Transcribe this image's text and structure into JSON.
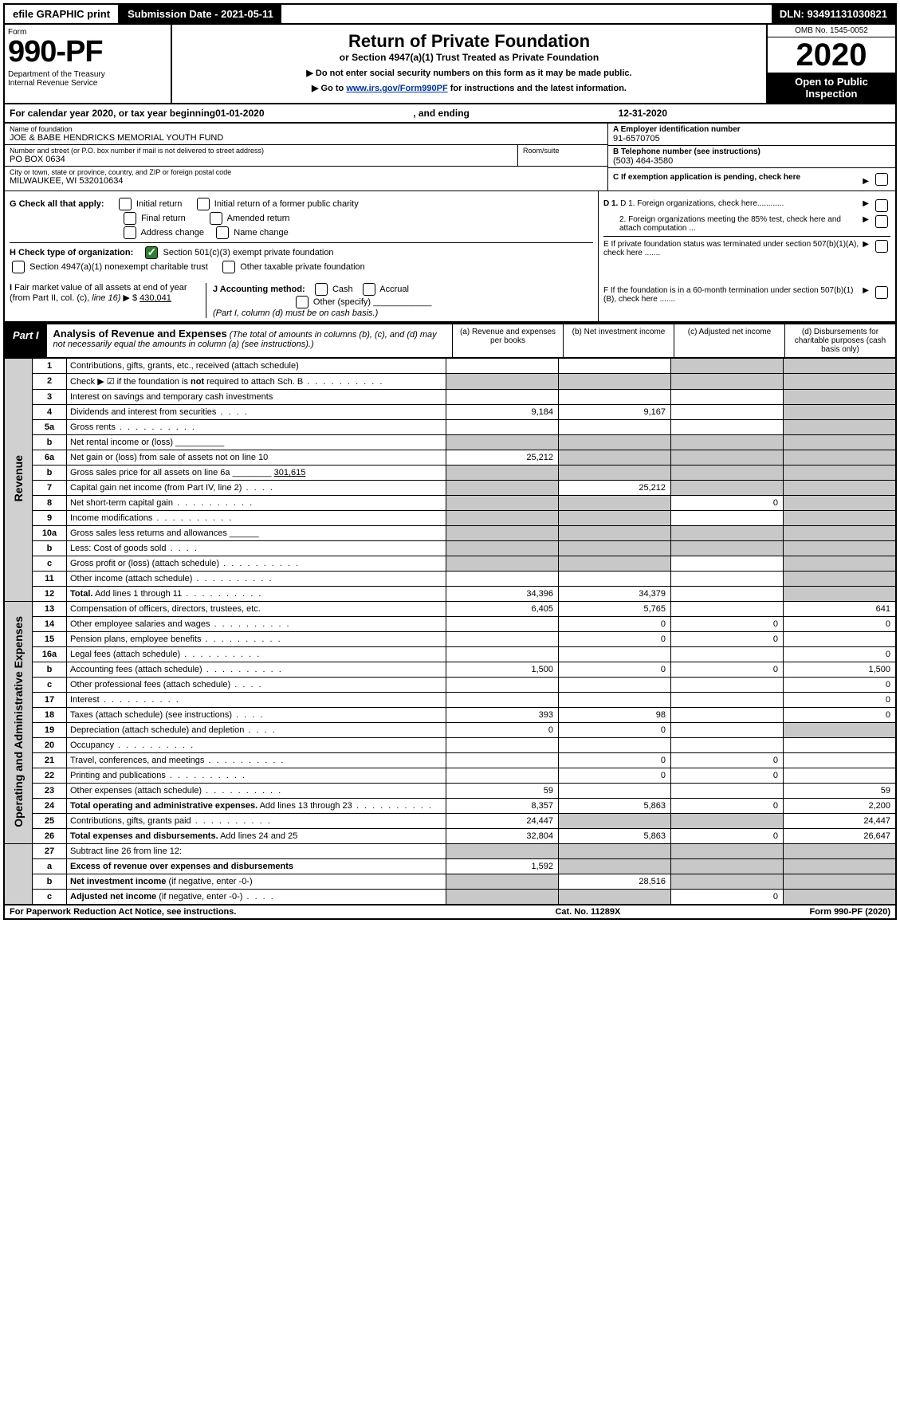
{
  "colors": {
    "black": "#000000",
    "white": "#ffffff",
    "shade_grey": "#c8c8c8",
    "side_grey": "#d0d0d0",
    "check_green": "#2e7d32",
    "link_blue": "#003399"
  },
  "top_bar": {
    "efile": "efile GRAPHIC print",
    "submission": "Submission Date - 2021-05-11",
    "dln": "DLN: 93491131030821"
  },
  "header": {
    "form_word": "Form",
    "form_number": "990-PF",
    "dept": "Department of the Treasury\nInternal Revenue Service",
    "title": "Return of Private Foundation",
    "subtitle": "or Section 4947(a)(1) Trust Treated as Private Foundation",
    "note1": "▶ Do not enter social security numbers on this form as it may be made public.",
    "note2_prefix": "▶ Go to ",
    "note2_link": "www.irs.gov/Form990PF",
    "note2_suffix": " for instructions and the latest information.",
    "omb": "OMB No. 1545-0052",
    "year": "2020",
    "open": "Open to Public Inspection"
  },
  "cal_year": {
    "prefix": "For calendar year 2020, or tax year beginning ",
    "begin": "01-01-2020",
    "mid": ", and ending ",
    "end": "12-31-2020"
  },
  "ident": {
    "name_lbl": "Name of foundation",
    "name": "JOE & BABE HENDRICKS MEMORIAL YOUTH FUND",
    "ein_lbl": "A Employer identification number",
    "ein": "91-6570705",
    "addr_lbl": "Number and street (or P.O. box number if mail is not delivered to street address)",
    "addr": "PO BOX 0634",
    "room_lbl": "Room/suite",
    "room": "",
    "tel_lbl": "B Telephone number (see instructions)",
    "tel": "(503) 464-3580",
    "city_lbl": "City or town, state or province, country, and ZIP or foreign postal code",
    "city": "MILWAUKEE, WI  532010634",
    "c_lbl": "C If exemption application is pending, check here"
  },
  "g_block": {
    "label": "G Check all that apply:",
    "opts": [
      "Initial return",
      "Initial return of a former public charity",
      "Final return",
      "Amended return",
      "Address change",
      "Name change"
    ]
  },
  "h_block": {
    "label": "H Check type of organization:",
    "opt1": "Section 501(c)(3) exempt private foundation",
    "opt2": "Section 4947(a)(1) nonexempt charitable trust",
    "opt3": "Other taxable private foundation"
  },
  "d_block": {
    "d1": "D 1. Foreign organizations, check here............",
    "d2": "2. Foreign organizations meeting the 85% test, check here and attach computation ...",
    "e": "E  If private foundation status was terminated under section 507(b)(1)(A), check here .......",
    "f": "F  If the foundation is in a 60-month termination under section 507(b)(1)(B), check here ......."
  },
  "ij_block": {
    "i_lbl": "I Fair market value of all assets at end of year (from Part II, col. (c), line 16)",
    "i_val": "430,041",
    "j_lbl": "J Accounting method:",
    "j_cash": "Cash",
    "j_accrual": "Accrual",
    "j_other": "Other (specify)",
    "j_note": "(Part I, column (d) must be on cash basis.)"
  },
  "part1": {
    "label": "Part I",
    "title": "Analysis of Revenue and Expenses",
    "title_note": "(The total of amounts in columns (b), (c), and (d) may not necessarily equal the amounts in column (a) (see instructions).)",
    "col_a": "(a)   Revenue and expenses per books",
    "col_b": "(b)  Net investment income",
    "col_c": "(c)  Adjusted net income",
    "col_d": "(d)  Disbursements for charitable purposes (cash basis only)"
  },
  "side_labels": {
    "revenue": "Revenue",
    "expenses": "Operating and Administrative Expenses"
  },
  "rows": [
    {
      "n": "1",
      "desc": "Contributions, gifts, grants, etc., received (attach schedule)",
      "a": "",
      "b": "",
      "c": "shade",
      "d": "shade"
    },
    {
      "n": "2",
      "desc": "Check ▶ ☑ if the foundation is <b>not</b> required to attach Sch. B",
      "a": "shade",
      "b": "shade",
      "c": "shade",
      "d": "shade",
      "dots": true
    },
    {
      "n": "3",
      "desc": "Interest on savings and temporary cash investments",
      "a": "",
      "b": "",
      "c": "",
      "d": "shade"
    },
    {
      "n": "4",
      "desc": "Dividends and interest from securities",
      "a": "9,184",
      "b": "9,167",
      "c": "",
      "d": "shade",
      "dots_sm": true
    },
    {
      "n": "5a",
      "desc": "Gross rents",
      "a": "",
      "b": "",
      "c": "",
      "d": "shade",
      "dots": true
    },
    {
      "n": "b",
      "desc": "Net rental income or (loss)  __________",
      "a": "shade",
      "b": "shade",
      "c": "shade",
      "d": "shade"
    },
    {
      "n": "6a",
      "desc": "Net gain or (loss) from sale of assets not on line 10",
      "a": "25,212",
      "b": "shade",
      "c": "shade",
      "d": "shade"
    },
    {
      "n": "b",
      "desc": "Gross sales price for all assets on line 6a ________ <u>301,615</u>",
      "a": "shade",
      "b": "shade",
      "c": "shade",
      "d": "shade"
    },
    {
      "n": "7",
      "desc": "Capital gain net income (from Part IV, line 2)",
      "a": "shade",
      "b": "25,212",
      "c": "shade",
      "d": "shade",
      "dots_sm": true
    },
    {
      "n": "8",
      "desc": "Net short-term capital gain",
      "a": "shade",
      "b": "shade",
      "c": "0",
      "d": "shade",
      "dots": true
    },
    {
      "n": "9",
      "desc": "Income modifications",
      "a": "shade",
      "b": "shade",
      "c": "",
      "d": "shade",
      "dots": true
    },
    {
      "n": "10a",
      "desc": "Gross sales less returns and allowances  ______",
      "a": "shade",
      "b": "shade",
      "c": "shade",
      "d": "shade"
    },
    {
      "n": "b",
      "desc": "Less: Cost of goods sold",
      "a": "shade",
      "b": "shade",
      "c": "shade",
      "d": "shade",
      "dots_sm": true
    },
    {
      "n": "c",
      "desc": "Gross profit or (loss) (attach schedule)",
      "a": "shade",
      "b": "shade",
      "c": "",
      "d": "shade",
      "dots": true
    },
    {
      "n": "11",
      "desc": "Other income (attach schedule)",
      "a": "",
      "b": "",
      "c": "",
      "d": "shade",
      "dots": true
    },
    {
      "n": "12",
      "desc": "<b>Total.</b> Add lines 1 through 11",
      "a": "34,396",
      "b": "34,379",
      "c": "",
      "d": "shade",
      "dots": true
    }
  ],
  "exp_rows": [
    {
      "n": "13",
      "desc": "Compensation of officers, directors, trustees, etc.",
      "a": "6,405",
      "b": "5,765",
      "c": "",
      "d": "641"
    },
    {
      "n": "14",
      "desc": "Other employee salaries and wages",
      "a": "",
      "b": "0",
      "c": "0",
      "d": "0",
      "dots": true
    },
    {
      "n": "15",
      "desc": "Pension plans, employee benefits",
      "a": "",
      "b": "0",
      "c": "0",
      "d": "",
      "dots": true
    },
    {
      "n": "16a",
      "desc": "Legal fees (attach schedule)",
      "a": "",
      "b": "",
      "c": "",
      "d": "0",
      "dots": true
    },
    {
      "n": "b",
      "desc": "Accounting fees (attach schedule)",
      "a": "1,500",
      "b": "0",
      "c": "0",
      "d": "1,500",
      "dots": true
    },
    {
      "n": "c",
      "desc": "Other professional fees (attach schedule)",
      "a": "",
      "b": "",
      "c": "",
      "d": "0",
      "dots_sm": true
    },
    {
      "n": "17",
      "desc": "Interest",
      "a": "",
      "b": "",
      "c": "",
      "d": "0",
      "dots": true
    },
    {
      "n": "18",
      "desc": "Taxes (attach schedule) (see instructions)",
      "a": "393",
      "b": "98",
      "c": "",
      "d": "0",
      "dots_sm": true
    },
    {
      "n": "19",
      "desc": "Depreciation (attach schedule) and depletion",
      "a": "0",
      "b": "0",
      "c": "",
      "d": "shade",
      "dots_sm": true
    },
    {
      "n": "20",
      "desc": "Occupancy",
      "a": "",
      "b": "",
      "c": "",
      "d": "",
      "dots": true
    },
    {
      "n": "21",
      "desc": "Travel, conferences, and meetings",
      "a": "",
      "b": "0",
      "c": "0",
      "d": "",
      "dots": true
    },
    {
      "n": "22",
      "desc": "Printing and publications",
      "a": "",
      "b": "0",
      "c": "0",
      "d": "",
      "dots": true
    },
    {
      "n": "23",
      "desc": "Other expenses (attach schedule)",
      "a": "59",
      "b": "",
      "c": "",
      "d": "59",
      "dots": true
    },
    {
      "n": "24",
      "desc": "<b>Total operating and administrative expenses.</b> Add lines 13 through 23",
      "a": "8,357",
      "b": "5,863",
      "c": "0",
      "d": "2,200",
      "dots": true
    },
    {
      "n": "25",
      "desc": "Contributions, gifts, grants paid",
      "a": "24,447",
      "b": "shade",
      "c": "shade",
      "d": "24,447",
      "dots": true
    },
    {
      "n": "26",
      "desc": "<b>Total expenses and disbursements.</b> Add lines 24 and 25",
      "a": "32,804",
      "b": "5,863",
      "c": "0",
      "d": "26,647"
    }
  ],
  "bottom_rows": [
    {
      "n": "27",
      "desc": "Subtract line 26 from line 12:",
      "a": "shade",
      "b": "shade",
      "c": "shade",
      "d": "shade"
    },
    {
      "n": "a",
      "desc": "<b>Excess of revenue over expenses and disbursements</b>",
      "a": "1,592",
      "b": "shade",
      "c": "shade",
      "d": "shade"
    },
    {
      "n": "b",
      "desc": "<b>Net investment income</b> (if negative, enter -0-)",
      "a": "shade",
      "b": "28,516",
      "c": "shade",
      "d": "shade"
    },
    {
      "n": "c",
      "desc": "<b>Adjusted net income</b> (if negative, enter -0-)",
      "a": "shade",
      "b": "shade",
      "c": "0",
      "d": "shade",
      "dots_sm": true
    }
  ],
  "footer": {
    "left": "For Paperwork Reduction Act Notice, see instructions.",
    "mid": "Cat. No. 11289X",
    "right": "Form 990-PF (2020)"
  }
}
